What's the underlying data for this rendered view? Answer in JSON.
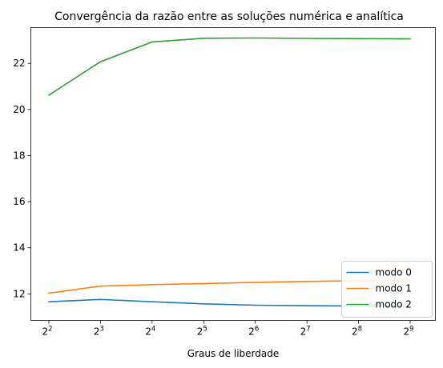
{
  "chart_data": {
    "type": "line",
    "title": "Convergência da razão entre as soluções numérica e analítica",
    "xlabel": "Graus de liberdade",
    "ylabel": "",
    "x_scale": "log2",
    "x": [
      4,
      8,
      16,
      32,
      64,
      128,
      256,
      512
    ],
    "x_tick_exponents": [
      "2",
      "3",
      "4",
      "5",
      "6",
      "7",
      "8",
      "9"
    ],
    "x_tick_base": "2",
    "y_ticks": [
      "12",
      "14",
      "16",
      "18",
      "20",
      "22"
    ],
    "ylim": [
      10.85,
      23.55
    ],
    "grid": false,
    "legend_position": "lower-right",
    "series": [
      {
        "name": "modo 0",
        "color": "#1f77b4",
        "values": [
          11.66,
          11.76,
          11.66,
          11.57,
          11.51,
          11.49,
          11.47,
          11.46
        ]
      },
      {
        "name": "modo 1",
        "color": "#ff7f0e",
        "values": [
          12.03,
          12.34,
          12.4,
          12.45,
          12.5,
          12.54,
          12.57,
          12.59
        ]
      },
      {
        "name": "modo 2",
        "color": "#2ca02c",
        "values": [
          20.62,
          22.07,
          22.93,
          23.09,
          23.1,
          23.08,
          23.07,
          23.06
        ]
      }
    ]
  }
}
